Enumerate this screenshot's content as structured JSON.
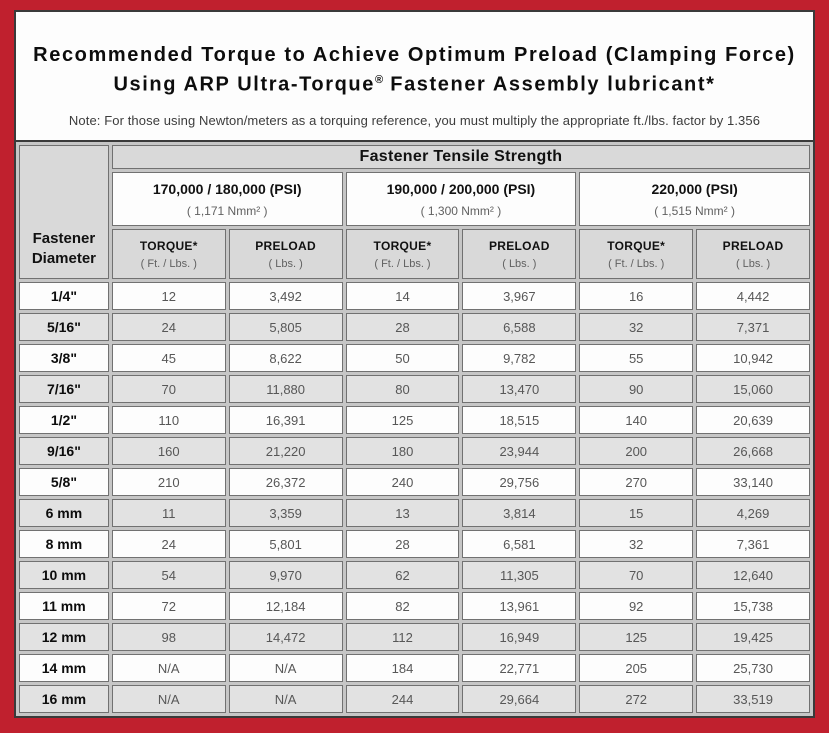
{
  "colors": {
    "frame_red": "#C0202E",
    "content_border": "#3a3a3a",
    "header_gray": "#d9d9d9",
    "row_alt_gray": "#e2e2e2",
    "cell_border_gray": "#717171",
    "value_text_gray": "#575757"
  },
  "title": {
    "line1": "Recommended Torque to Achieve Optimum Preload (Clamping Force)",
    "line2_pre": "Using ARP Ultra-Torque",
    "line2_sup": "®",
    "line2_post": " Fastener Assembly lubricant*"
  },
  "note": "Note: For those using Newton/meters as a torquing reference, you must multiply the appropriate ft./lbs. factor by 1.356",
  "chart_data": {
    "type": "table",
    "title": "Recommended Torque to Achieve Optimum Preload (Clamping Force) Using ARP Ultra-Torque® Fastener Assembly lubricant*",
    "tensile_header": "Fastener Tensile Strength",
    "diameter_header_lines": [
      "Fastener",
      "Diameter"
    ],
    "strength_groups": [
      {
        "psi": "170,000 / 180,000 (PSI)",
        "nmm": "( 1,171 Nmm² )"
      },
      {
        "psi": "190,000 / 200,000 (PSI)",
        "nmm": "( 1,300 Nmm² )"
      },
      {
        "psi": "220,000 (PSI)",
        "nmm": "( 1,515 Nmm² )"
      }
    ],
    "sub_headers": {
      "torque": "TORQUE*",
      "torque_unit": "( Ft. / Lbs. )",
      "preload": "PRELOAD",
      "preload_unit": "( Lbs. )"
    },
    "rows": [
      {
        "diameter": "1/4\"",
        "values": [
          "12",
          "3,492",
          "14",
          "3,967",
          "16",
          "4,442"
        ]
      },
      {
        "diameter": "5/16\"",
        "values": [
          "24",
          "5,805",
          "28",
          "6,588",
          "32",
          "7,371"
        ]
      },
      {
        "diameter": "3/8\"",
        "values": [
          "45",
          "8,622",
          "50",
          "9,782",
          "55",
          "10,942"
        ]
      },
      {
        "diameter": "7/16\"",
        "values": [
          "70",
          "11,880",
          "80",
          "13,470",
          "90",
          "15,060"
        ]
      },
      {
        "diameter": "1/2\"",
        "values": [
          "110",
          "16,391",
          "125",
          "18,515",
          "140",
          "20,639"
        ]
      },
      {
        "diameter": "9/16\"",
        "values": [
          "160",
          "21,220",
          "180",
          "23,944",
          "200",
          "26,668"
        ]
      },
      {
        "diameter": "5/8\"",
        "values": [
          "210",
          "26,372",
          "240",
          "29,756",
          "270",
          "33,140"
        ]
      },
      {
        "diameter": "6 mm",
        "values": [
          "11",
          "3,359",
          "13",
          "3,814",
          "15",
          "4,269"
        ]
      },
      {
        "diameter": "8 mm",
        "values": [
          "24",
          "5,801",
          "28",
          "6,581",
          "32",
          "7,361"
        ]
      },
      {
        "diameter": "10 mm",
        "values": [
          "54",
          "9,970",
          "62",
          "11,305",
          "70",
          "12,640"
        ]
      },
      {
        "diameter": "11 mm",
        "values": [
          "72",
          "12,184",
          "82",
          "13,961",
          "92",
          "15,738"
        ]
      },
      {
        "diameter": "12 mm",
        "values": [
          "98",
          "14,472",
          "112",
          "16,949",
          "125",
          "19,425"
        ]
      },
      {
        "diameter": "14 mm",
        "values": [
          "N/A",
          "N/A",
          "184",
          "22,771",
          "205",
          "25,730"
        ]
      },
      {
        "diameter": "16 mm",
        "values": [
          "N/A",
          "N/A",
          "244",
          "29,664",
          "272",
          "33,519"
        ]
      }
    ]
  }
}
